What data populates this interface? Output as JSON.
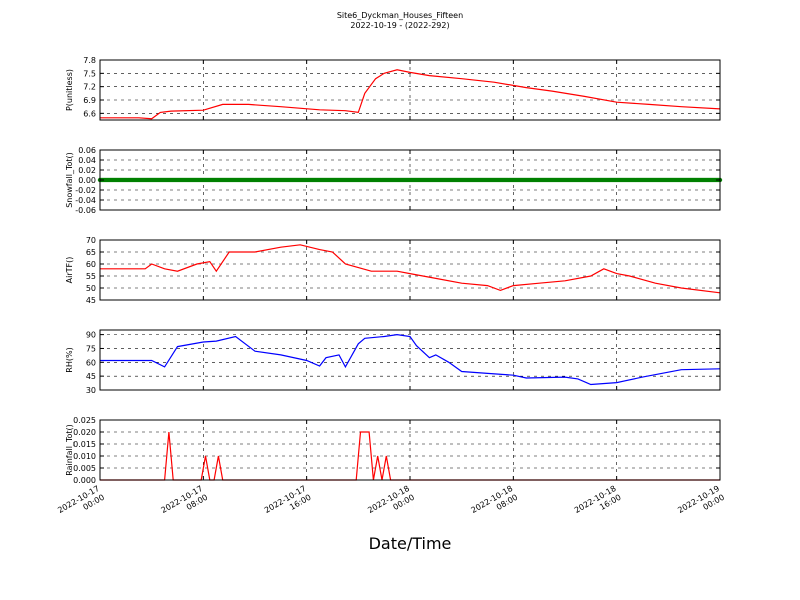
{
  "title": "Site6_Dyckman_Houses_Fifteen",
  "subtitle": "2022-10-19 - (2022-292)",
  "xlabel": "Date/Time",
  "chart_data": {
    "type": "line",
    "title": "Site6_Dyckman_Houses_Fifteen",
    "subtitle": "2022-10-19 - (2022-292)",
    "xlabel": "Date/Time",
    "xlim": [
      "2022-10-17 00:00",
      "2022-10-19 00:00"
    ],
    "x_tick_labels": [
      [
        "2022-10-17",
        "00:00"
      ],
      [
        "2022-10-17",
        "08:00"
      ],
      [
        "2022-10-17",
        "16:00"
      ],
      [
        "2022-10-18",
        "00:00"
      ],
      [
        "2022-10-18",
        "08:00"
      ],
      [
        "2022-10-18",
        "16:00"
      ],
      [
        "2022-10-19",
        "00:00"
      ]
    ],
    "grid": true,
    "panels": [
      {
        "ylabel": "P(unitless)",
        "color": "#ff0000",
        "ylim": [
          6.45,
          7.8
        ],
        "yticks": [
          6.6,
          6.9,
          7.2,
          7.5,
          7.8
        ],
        "ytick_labels": [
          "6.6",
          "6.9",
          "7.2",
          "7.5",
          "7.8"
        ],
        "marker": false,
        "x": [
          "2022-10-17 00:00",
          "2022-10-17 03:00",
          "2022-10-17 04:00",
          "2022-10-17 04:40",
          "2022-10-17 05:30",
          "2022-10-17 08:00",
          "2022-10-17 09:30",
          "2022-10-17 11:30",
          "2022-10-17 14:00",
          "2022-10-17 17:00",
          "2022-10-17 19:00",
          "2022-10-17 20:00",
          "2022-10-17 20:30",
          "2022-10-17 21:20",
          "2022-10-17 22:00",
          "2022-10-17 23:00",
          "2022-10-18 00:00",
          "2022-10-18 01:30",
          "2022-10-18 04:00",
          "2022-10-18 06:30",
          "2022-10-18 09:00",
          "2022-10-18 11:00",
          "2022-10-18 13:30",
          "2022-10-18 16:00",
          "2022-10-18 18:30",
          "2022-10-18 21:00",
          "2022-10-19 00:00"
        ],
        "y": [
          6.5,
          6.5,
          6.48,
          6.62,
          6.65,
          6.67,
          6.8,
          6.8,
          6.75,
          6.68,
          6.66,
          6.62,
          7.05,
          7.38,
          7.5,
          7.58,
          7.52,
          7.45,
          7.38,
          7.3,
          7.18,
          7.1,
          6.98,
          6.85,
          6.8,
          6.75,
          6.7
        ]
      },
      {
        "ylabel": "Snowfall_Tot()",
        "color": "#008000",
        "ylim": [
          -0.06,
          0.06
        ],
        "yticks": [
          -0.06,
          -0.04,
          -0.02,
          0.0,
          0.02,
          0.04,
          0.06
        ],
        "ytick_labels": [
          "-0.06",
          "-0.04",
          "-0.02",
          "0.00",
          "0.02",
          "0.04",
          "0.06"
        ],
        "marker": true,
        "x": [
          "2022-10-17 00:00",
          "2022-10-19 00:00"
        ],
        "y": [
          0.0,
          0.0
        ]
      },
      {
        "ylabel": "AirTF()",
        "color": "#ff0000",
        "ylim": [
          45,
          70
        ],
        "yticks": [
          45,
          50,
          55,
          60,
          65,
          70
        ],
        "ytick_labels": [
          "45",
          "50",
          "55",
          "60",
          "65",
          "70"
        ],
        "marker": false,
        "x": [
          "2022-10-17 00:00",
          "2022-10-17 02:00",
          "2022-10-17 03:30",
          "2022-10-17 04:00",
          "2022-10-17 05:00",
          "2022-10-17 06:00",
          "2022-10-17 07:30",
          "2022-10-17 08:30",
          "2022-10-17 09:00",
          "2022-10-17 10:00",
          "2022-10-17 12:00",
          "2022-10-17 14:00",
          "2022-10-17 15:30",
          "2022-10-17 17:00",
          "2022-10-17 18:00",
          "2022-10-17 19:00",
          "2022-10-17 21:00",
          "2022-10-17 23:00",
          "2022-10-18 00:00",
          "2022-10-18 02:00",
          "2022-10-18 04:00",
          "2022-10-18 06:00",
          "2022-10-18 07:00",
          "2022-10-18 08:00",
          "2022-10-18 10:00",
          "2022-10-18 12:00",
          "2022-10-18 14:00",
          "2022-10-18 15:00",
          "2022-10-18 16:00",
          "2022-10-18 17:00",
          "2022-10-18 19:00",
          "2022-10-18 21:00",
          "2022-10-19 00:00"
        ],
        "y": [
          58,
          58,
          58,
          60,
          58,
          57,
          60,
          61,
          57,
          65,
          65,
          67,
          68,
          66,
          65,
          60,
          57,
          57,
          56,
          54,
          52,
          51,
          49,
          51,
          52,
          53,
          55,
          58,
          56,
          55,
          52,
          50,
          48
        ]
      },
      {
        "ylabel": "RH(%)",
        "color": "#0000ff",
        "ylim": [
          30,
          95
        ],
        "yticks": [
          30,
          45,
          60,
          75,
          90
        ],
        "ytick_labels": [
          "30",
          "45",
          "60",
          "75",
          "90"
        ],
        "marker": false,
        "x": [
          "2022-10-17 00:00",
          "2022-10-17 04:00",
          "2022-10-17 05:00",
          "2022-10-17 06:00",
          "2022-10-17 08:00",
          "2022-10-17 09:00",
          "2022-10-17 10:30",
          "2022-10-17 12:00",
          "2022-10-17 14:00",
          "2022-10-17 16:00",
          "2022-10-17 17:00",
          "2022-10-17 17:30",
          "2022-10-17 18:30",
          "2022-10-17 19:00",
          "2022-10-17 20:00",
          "2022-10-17 20:30",
          "2022-10-17 22:00",
          "2022-10-17 23:00",
          "2022-10-18 00:00",
          "2022-10-18 00:30",
          "2022-10-18 01:30",
          "2022-10-18 02:00",
          "2022-10-18 03:00",
          "2022-10-18 04:00",
          "2022-10-18 06:00",
          "2022-10-18 08:00",
          "2022-10-18 09:00",
          "2022-10-18 12:00",
          "2022-10-18 13:00",
          "2022-10-18 14:00",
          "2022-10-18 16:00",
          "2022-10-18 18:00",
          "2022-10-18 21:00",
          "2022-10-19 00:00"
        ],
        "y": [
          62,
          62,
          55,
          77,
          82,
          83,
          88,
          72,
          68,
          62,
          56,
          65,
          68,
          55,
          80,
          86,
          88,
          90,
          88,
          78,
          65,
          68,
          60,
          50,
          48,
          46,
          43,
          44,
          42,
          36,
          38,
          44,
          52,
          53
        ]
      },
      {
        "ylabel": "Rainfall_Tot()",
        "color": "#ff0000",
        "ylim": [
          0.0,
          0.025
        ],
        "yticks": [
          0.0,
          0.005,
          0.01,
          0.015,
          0.02,
          0.025
        ],
        "ytick_labels": [
          "0.000",
          "0.005",
          "0.010",
          "0.015",
          "0.020",
          "0.025"
        ],
        "marker": false,
        "x": [
          "2022-10-17 00:00",
          "2022-10-17 05:00",
          "2022-10-17 05:20",
          "2022-10-17 05:40",
          "2022-10-17 07:50",
          "2022-10-17 08:10",
          "2022-10-17 08:30",
          "2022-10-17 08:50",
          "2022-10-17 09:10",
          "2022-10-17 09:30",
          "2022-10-17 19:50",
          "2022-10-17 20:10",
          "2022-10-17 20:50",
          "2022-10-17 21:10",
          "2022-10-17 21:30",
          "2022-10-17 21:50",
          "2022-10-17 22:10",
          "2022-10-17 22:30",
          "2022-10-17 22:50",
          "2022-10-19 00:00"
        ],
        "y": [
          0,
          0,
          0.02,
          0,
          0,
          0.01,
          0,
          0,
          0.01,
          0,
          0,
          0.02,
          0.02,
          0,
          0.01,
          0,
          0.01,
          0,
          0,
          0
        ]
      }
    ]
  }
}
